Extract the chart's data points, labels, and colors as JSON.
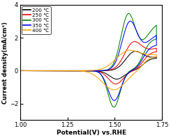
{
  "title": "",
  "xlabel": "Potential(V) vs.RHE",
  "ylabel": "Current density(mA/cm²)",
  "xlim": [
    1.0,
    1.75
  ],
  "ylim": [
    -3.0,
    4.0
  ],
  "xticks": [
    1.0,
    1.25,
    1.5,
    1.75
  ],
  "yticks": [
    -2,
    0,
    2,
    4
  ],
  "legend_labels": [
    "200 ℃",
    "250 ℃",
    "300 ℃",
    "350 ℃",
    "400 ℃"
  ],
  "colors": [
    "black",
    "red",
    "green",
    "blue",
    "orange"
  ],
  "background_color": "#ffffff",
  "figsize": [
    2.45,
    1.98
  ],
  "dpi": 100
}
